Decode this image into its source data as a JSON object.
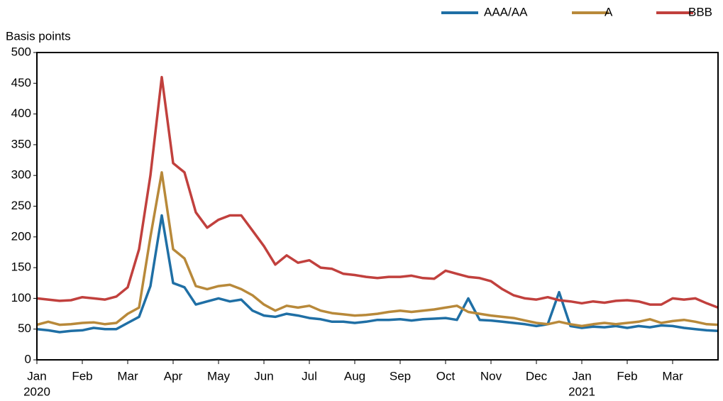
{
  "chart_data": {
    "type": "line",
    "y_label": "Basis points",
    "categories": [
      "Jan",
      null,
      null,
      null,
      "Feb",
      null,
      null,
      null,
      "Mar",
      null,
      null,
      null,
      "Apr",
      null,
      null,
      null,
      "May",
      null,
      null,
      null,
      "Jun",
      null,
      null,
      null,
      "Jul",
      null,
      null,
      null,
      "Aug",
      null,
      null,
      null,
      "Sep",
      null,
      null,
      null,
      "Oct",
      null,
      null,
      null,
      "Nov",
      null,
      null,
      null,
      "Dec",
      null,
      null,
      null,
      "Jan",
      null,
      null,
      null,
      "Feb",
      null,
      null,
      null,
      "Mar",
      null,
      null,
      null,
      null
    ],
    "years": [
      "2020",
      "2021"
    ],
    "series": [
      {
        "name": "AAA/AA",
        "color": "#1f6fa5",
        "values": [
          50,
          48,
          45,
          47,
          48,
          52,
          50,
          50,
          60,
          70,
          120,
          235,
          125,
          118,
          90,
          95,
          100,
          95,
          98,
          80,
          72,
          70,
          75,
          72,
          68,
          66,
          62,
          62,
          60,
          62,
          65,
          65,
          66,
          64,
          66,
          67,
          68,
          65,
          100,
          65,
          64,
          62,
          60,
          58,
          55,
          58,
          110,
          55,
          52,
          54,
          53,
          55,
          52,
          55,
          53,
          56,
          55,
          52,
          50,
          48,
          47
        ]
      },
      {
        "name": "A",
        "color": "#b8893a",
        "values": [
          57,
          62,
          57,
          58,
          60,
          61,
          58,
          60,
          75,
          85,
          200,
          305,
          180,
          165,
          120,
          115,
          120,
          122,
          115,
          105,
          90,
          80,
          88,
          85,
          88,
          80,
          76,
          74,
          72,
          73,
          75,
          78,
          80,
          78,
          80,
          82,
          85,
          88,
          78,
          75,
          72,
          70,
          68,
          64,
          60,
          58,
          62,
          58,
          55,
          58,
          60,
          58,
          60,
          62,
          66,
          60,
          63,
          65,
          62,
          58,
          57
        ]
      },
      {
        "name": "BBB",
        "color": "#c1403d",
        "values": [
          100,
          98,
          96,
          97,
          102,
          100,
          98,
          103,
          118,
          180,
          300,
          460,
          320,
          305,
          240,
          215,
          228,
          235,
          235,
          210,
          185,
          155,
          170,
          158,
          162,
          150,
          148,
          140,
          138,
          135,
          133,
          135,
          135,
          137,
          133,
          132,
          145,
          140,
          135,
          133,
          128,
          115,
          105,
          100,
          98,
          102,
          97,
          95,
          92,
          95,
          93,
          96,
          97,
          95,
          90,
          90,
          100,
          98,
          100,
          92,
          85
        ]
      }
    ],
    "ylim": [
      0,
      500
    ],
    "yticks": [
      0,
      50,
      100,
      150,
      200,
      250,
      300,
      350,
      400,
      450,
      500
    ],
    "legend": "top-right"
  }
}
